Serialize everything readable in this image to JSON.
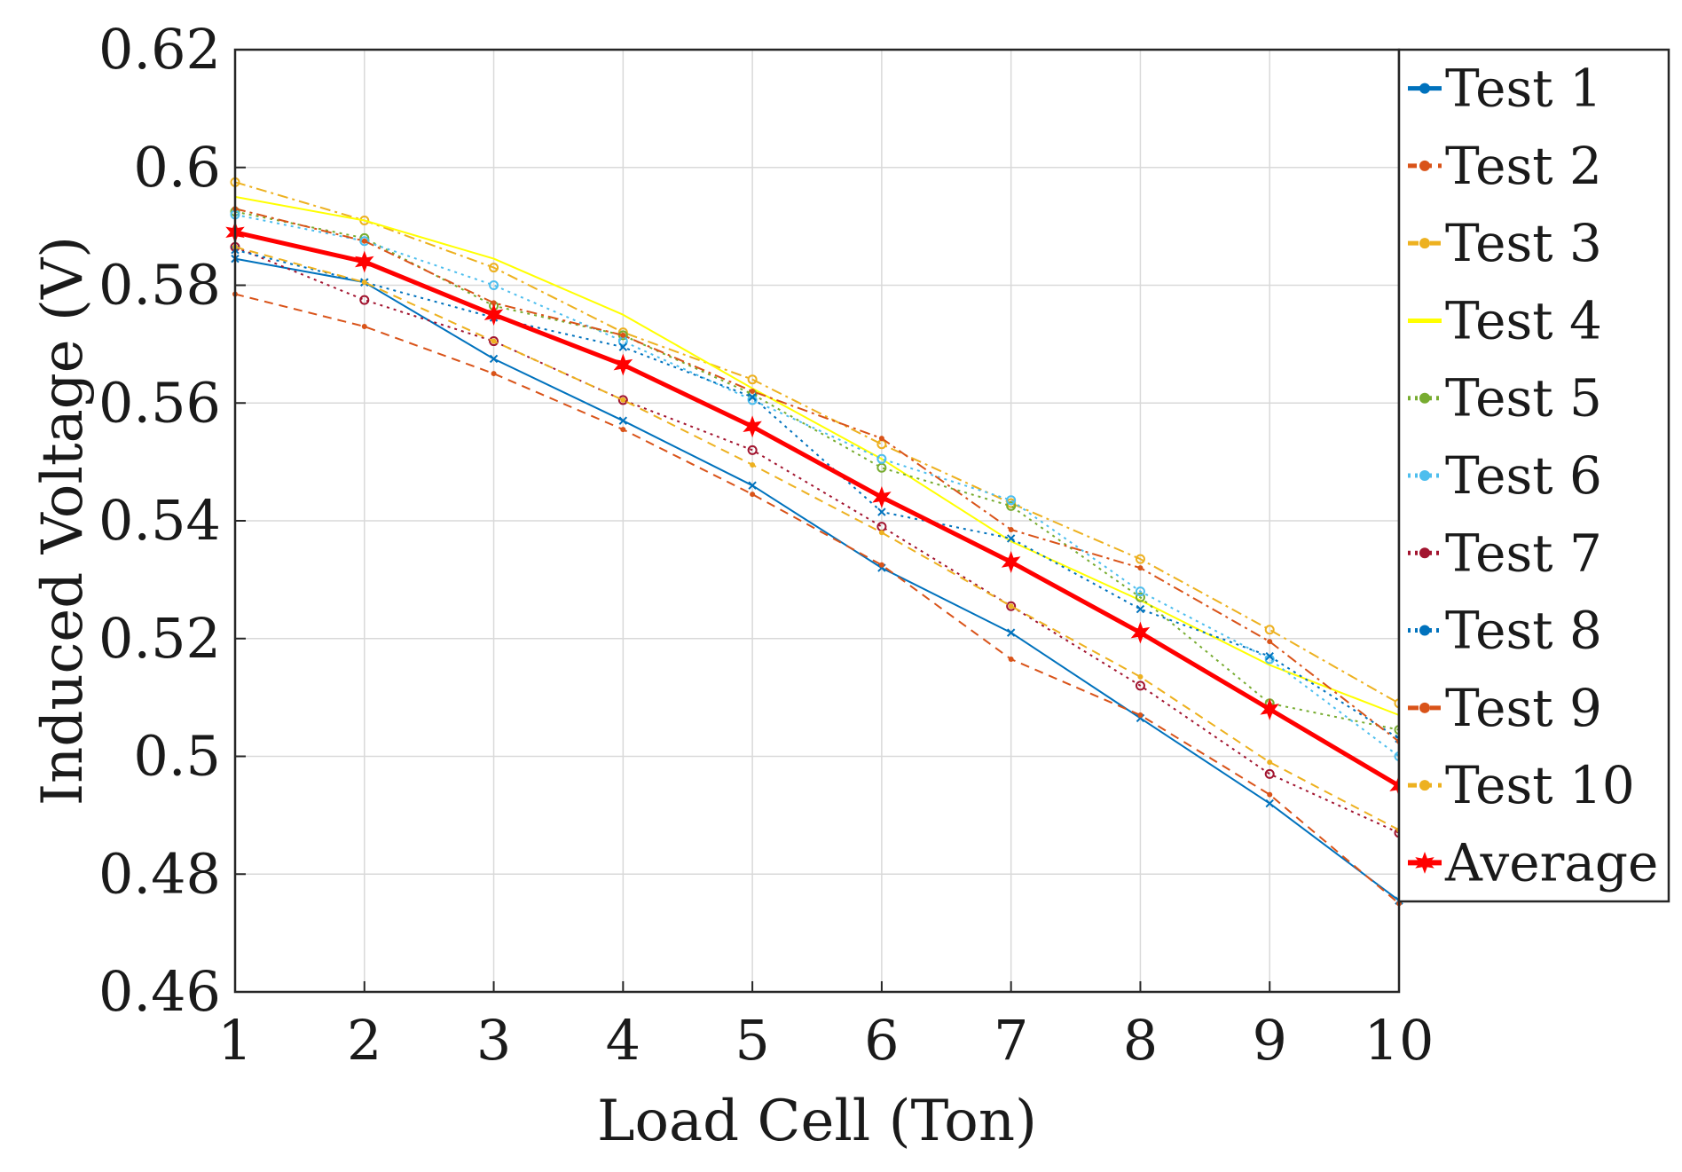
{
  "chart_data": {
    "type": "line",
    "title": "",
    "xlabel": "Load Cell (Ton)",
    "ylabel": "Induced Voltage (V)",
    "xlim": [
      1,
      10
    ],
    "ylim": [
      0.46,
      0.62
    ],
    "x": [
      1,
      2,
      3,
      4,
      5,
      6,
      7,
      8,
      9,
      10
    ],
    "x_tick_labels": [
      "1",
      "2",
      "3",
      "4",
      "5",
      "6",
      "7",
      "8",
      "9",
      "10"
    ],
    "y_ticks": [
      0.46,
      0.48,
      0.5,
      0.52,
      0.54,
      0.56,
      0.58,
      0.6,
      0.62
    ],
    "y_tick_labels": [
      "0.46",
      "0.48",
      "0.5",
      "0.52",
      "0.54",
      "0.56",
      "0.58",
      "0.6",
      "0.62"
    ],
    "grid": true,
    "legend_position": "right-outside-top",
    "series": [
      {
        "name": "Test 1",
        "color": "#0072BD",
        "dash": "solid",
        "marker": "x",
        "values": [
          0.5845,
          0.5805,
          0.5675,
          0.557,
          0.546,
          0.532,
          0.521,
          0.5065,
          0.492,
          0.4755
        ]
      },
      {
        "name": "Test 2",
        "color": "#D95319",
        "dash": "dashed",
        "marker": "dot",
        "values": [
          0.5785,
          0.573,
          0.565,
          0.5555,
          0.5445,
          0.5325,
          0.5165,
          0.507,
          0.4935,
          0.475
        ]
      },
      {
        "name": "Test 3",
        "color": "#EDB120",
        "dash": "dashdot",
        "marker": "circle",
        "values": [
          0.5975,
          0.591,
          0.583,
          0.572,
          0.564,
          0.553,
          0.543,
          0.5335,
          0.5215,
          0.509
        ]
      },
      {
        "name": "Test 4",
        "color": "#FFFF00",
        "dash": "solid",
        "marker": "none",
        "values": [
          0.595,
          0.591,
          0.5845,
          0.575,
          0.5625,
          0.5505,
          0.5365,
          0.5265,
          0.5155,
          0.507
        ]
      },
      {
        "name": "Test 5",
        "color": "#77AC30",
        "dash": "dotted",
        "marker": "circle",
        "values": [
          0.5925,
          0.588,
          0.5765,
          0.5715,
          0.5615,
          0.549,
          0.5425,
          0.527,
          0.509,
          0.5045
        ]
      },
      {
        "name": "Test 6",
        "color": "#4DBEEE",
        "dash": "dotted",
        "marker": "circle",
        "values": [
          0.592,
          0.5875,
          0.58,
          0.5705,
          0.5605,
          0.5505,
          0.5435,
          0.528,
          0.5165,
          0.5
        ]
      },
      {
        "name": "Test 7",
        "color": "#A2142F",
        "dash": "dotted",
        "marker": "circle",
        "values": [
          0.5865,
          0.5775,
          0.5705,
          0.5605,
          0.552,
          0.539,
          0.5255,
          0.512,
          0.497,
          0.487
        ]
      },
      {
        "name": "Test 8",
        "color": "#0072BD",
        "dash": "dotted",
        "marker": "x",
        "values": [
          0.586,
          0.5805,
          0.5745,
          0.5695,
          0.561,
          0.5415,
          0.537,
          0.525,
          0.517,
          0.503
        ]
      },
      {
        "name": "Test 9",
        "color": "#D95319",
        "dash": "dashdot",
        "marker": "dot",
        "values": [
          0.593,
          0.5875,
          0.577,
          0.5715,
          0.562,
          0.554,
          0.5385,
          0.532,
          0.5195,
          0.5025
        ]
      },
      {
        "name": "Test 10",
        "color": "#EDB120",
        "dash": "dashed",
        "marker": "dot",
        "values": [
          0.5865,
          0.5805,
          0.5705,
          0.5605,
          0.5495,
          0.538,
          0.5255,
          0.5135,
          0.499,
          0.4875
        ]
      },
      {
        "name": "Average",
        "color": "#FF0000",
        "dash": "solid",
        "marker": "star",
        "bold": true,
        "values": [
          0.589,
          0.584,
          0.575,
          0.5665,
          0.556,
          0.544,
          0.533,
          0.521,
          0.508,
          0.495
        ]
      }
    ]
  }
}
